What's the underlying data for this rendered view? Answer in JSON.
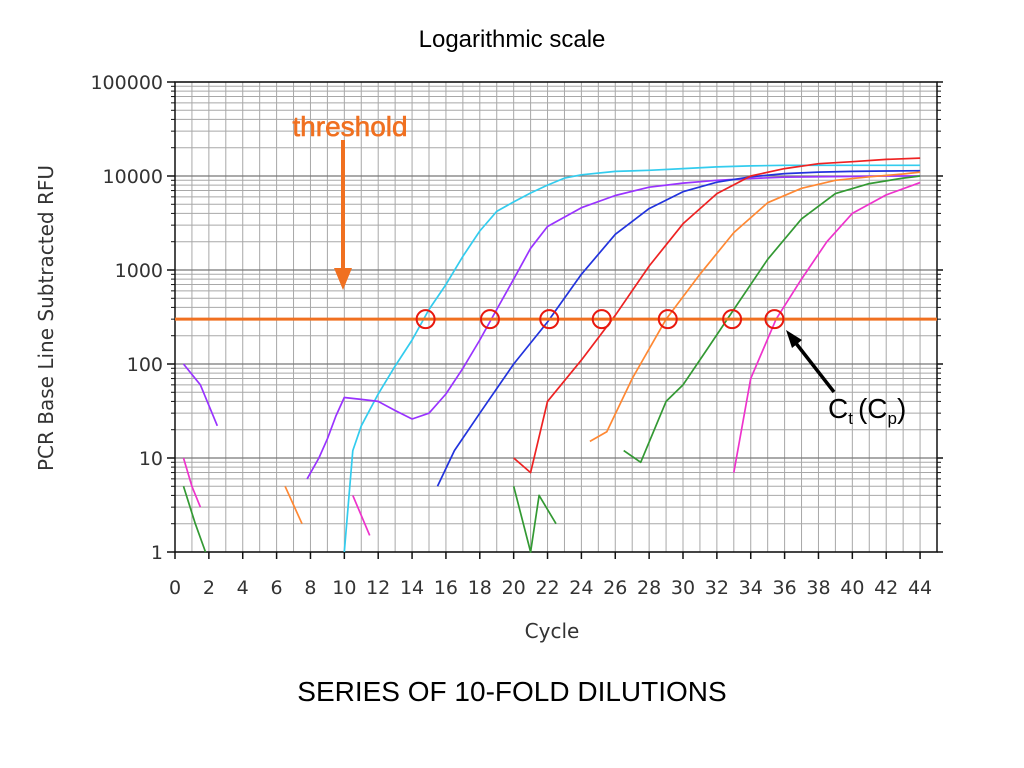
{
  "slide": {
    "title": "Logarithmic scale",
    "caption": "SERIES OF 10-FOLD DILUTIONS"
  },
  "chart_data": {
    "type": "line",
    "xlabel": "Cycle",
    "ylabel": "PCR Base Line Subtracted RFU",
    "xlim": [
      0,
      45
    ],
    "ylim": [
      1,
      100000
    ],
    "y_scale": "log",
    "grid": true,
    "x_ticks": [
      0,
      2,
      4,
      6,
      8,
      10,
      12,
      14,
      16,
      18,
      20,
      22,
      24,
      26,
      28,
      30,
      32,
      34,
      36,
      38,
      40,
      42,
      44
    ],
    "y_ticks": [
      1,
      10,
      100,
      1000,
      10000,
      100000
    ],
    "y_tick_labels": [
      "1",
      "10",
      "100",
      "1000",
      "10000",
      "100000"
    ],
    "threshold": {
      "label": "threshold",
      "value": 300,
      "color": "#f07020"
    },
    "annotation": {
      "ct": "C",
      "ct_sub": "t",
      "paren_open": "(C",
      "cp_sub": "p",
      "paren_close": ")"
    },
    "ct_points": [
      {
        "x": 14.8,
        "y": 300
      },
      {
        "x": 18.6,
        "y": 300
      },
      {
        "x": 22.1,
        "y": 300
      },
      {
        "x": 25.2,
        "y": 300
      },
      {
        "x": 29.1,
        "y": 300
      },
      {
        "x": 32.9,
        "y": 300
      },
      {
        "x": 35.4,
        "y": 300
      }
    ],
    "series": [
      {
        "color": "#33ccee",
        "x": [
          10,
          10.5,
          11,
          12,
          13,
          14,
          15,
          16,
          17,
          18,
          19,
          20,
          21,
          22,
          23,
          24,
          26,
          28,
          30,
          32,
          34,
          36,
          38,
          40,
          42,
          44
        ],
        "y": [
          1,
          12,
          22,
          48,
          95,
          180,
          380,
          700,
          1400,
          2600,
          4200,
          5300,
          6600,
          8000,
          9500,
          10300,
          11200,
          11500,
          12000,
          12500,
          12800,
          13000,
          13000,
          13000,
          13000,
          13000
        ]
      },
      {
        "color": "#9933ff",
        "x": [
          0.5,
          1.5,
          2.5
        ],
        "y": [
          100,
          60,
          22
        ]
      },
      {
        "color": "#9933ff",
        "x": [
          7.8,
          8.5,
          9,
          9.5,
          10,
          11,
          12,
          13,
          14,
          15,
          16,
          17,
          18,
          19,
          20,
          21,
          22,
          24,
          26,
          28,
          30,
          32,
          34,
          36,
          38,
          40,
          42,
          44
        ],
        "y": [
          6,
          10,
          16,
          28,
          44,
          42,
          40,
          32,
          26,
          30,
          48,
          90,
          180,
          380,
          800,
          1700,
          2900,
          4600,
          6200,
          7600,
          8400,
          9000,
          9400,
          9700,
          9800,
          9900,
          10000,
          10000
        ]
      },
      {
        "color": "#2233dd",
        "x": [
          15.5,
          16.5,
          18,
          20,
          22,
          24,
          26,
          28,
          30,
          32,
          34,
          36,
          38,
          40,
          42,
          44
        ],
        "y": [
          5,
          12,
          30,
          100,
          280,
          900,
          2400,
          4500,
          6800,
          8600,
          9800,
          10600,
          11000,
          11200,
          11300,
          11400
        ]
      },
      {
        "color": "#ee2222",
        "x": [
          20,
          21,
          22,
          24,
          26,
          28,
          30,
          32,
          34,
          36,
          38,
          40,
          42,
          44
        ],
        "y": [
          10,
          7,
          40,
          110,
          330,
          1100,
          3100,
          6500,
          10000,
          12000,
          13500,
          14200,
          15000,
          15500
        ]
      },
      {
        "color": "#ff8833",
        "x": [
          6.5,
          7.5
        ],
        "y": [
          5,
          2
        ]
      },
      {
        "color": "#ff8833",
        "x": [
          24.5,
          25.5,
          27,
          29,
          31,
          33,
          35,
          37,
          39,
          41,
          43,
          44
        ],
        "y": [
          15,
          19,
          70,
          300,
          900,
          2500,
          5200,
          7400,
          9000,
          9800,
          10500,
          11000
        ]
      },
      {
        "color": "#339933",
        "x": [
          0.5,
          1.2,
          1.8
        ],
        "y": [
          5,
          2,
          1
        ]
      },
      {
        "color": "#339933",
        "x": [
          26.5,
          27.5,
          29,
          30,
          31.5,
          33,
          35,
          37,
          39,
          41,
          43,
          44
        ],
        "y": [
          12,
          9,
          40,
          60,
          150,
          380,
          1300,
          3500,
          6500,
          8300,
          9500,
          10000
        ]
      },
      {
        "color": "#339933",
        "x": [
          20,
          21,
          21.5,
          22.5
        ],
        "y": [
          5,
          1,
          4,
          2
        ]
      },
      {
        "color": "#ee33cc",
        "x": [
          0.5,
          1,
          1.5
        ],
        "y": [
          10,
          5,
          3
        ]
      },
      {
        "color": "#ee33cc",
        "x": [
          10.5,
          11.5
        ],
        "y": [
          4,
          1.5
        ]
      },
      {
        "color": "#ee33cc",
        "x": [
          33,
          34,
          35.5,
          37,
          38.5,
          40,
          42,
          44
        ],
        "y": [
          7,
          70,
          300,
          800,
          2000,
          4000,
          6300,
          8500
        ]
      }
    ]
  }
}
